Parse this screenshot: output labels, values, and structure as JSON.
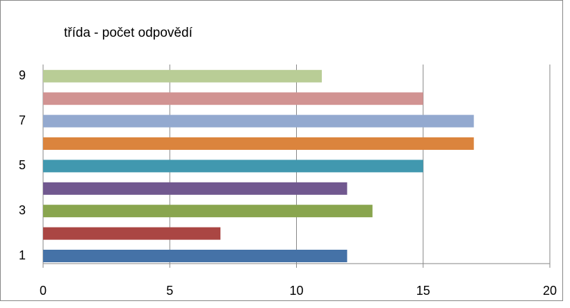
{
  "chart_data": {
    "type": "bar",
    "orientation": "horizontal",
    "title": "třída - počet odpovědí",
    "categories": [
      "1",
      null,
      "3",
      null,
      "5",
      null,
      "7",
      null,
      "9"
    ],
    "values": [
      12,
      7,
      13,
      12,
      15,
      17,
      17,
      15,
      11
    ],
    "colors": [
      "#4572a7",
      "#aa4643",
      "#89a54e",
      "#71588f",
      "#4198af",
      "#db843d",
      "#93a9cf",
      "#d19392",
      "#b9cd96"
    ],
    "xlim": [
      0,
      20
    ],
    "xticks": [
      0,
      5,
      10,
      15,
      20
    ],
    "grid": true
  }
}
